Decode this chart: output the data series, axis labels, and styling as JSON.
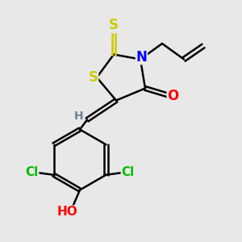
{
  "bg_color": "#e8e8e8",
  "atom_colors": {
    "S": "#cccc00",
    "N": "#0000ff",
    "O": "#ff0000",
    "Cl": "#00bb00",
    "H_gray": "#708090",
    "C": "#000000"
  },
  "bond_color": "#000000",
  "bond_width": 1.8
}
